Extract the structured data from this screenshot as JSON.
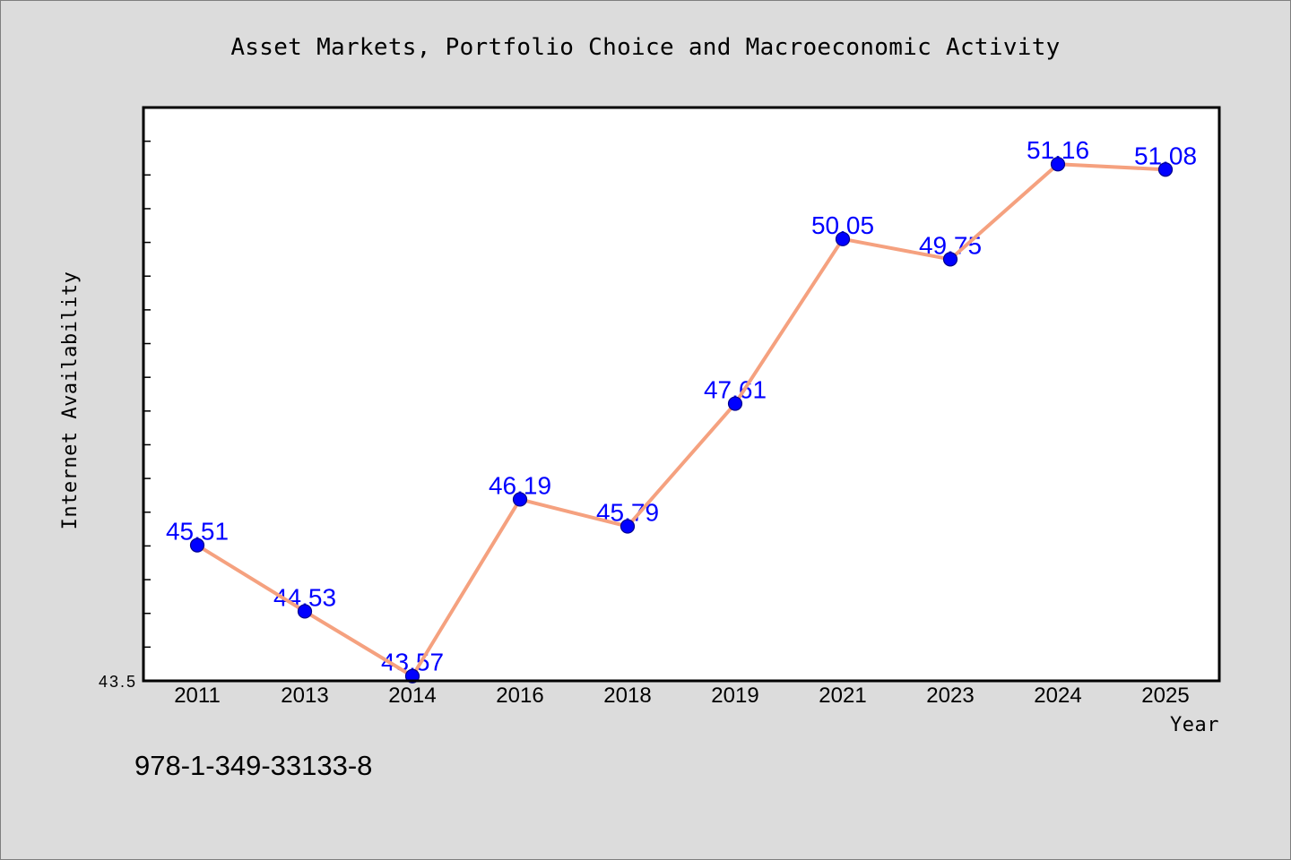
{
  "colors": {
    "background": "#dcdcdc",
    "frame": "#7f7f7f",
    "plot_background": "#ffffff",
    "axis": "#000000",
    "text": "#000000",
    "line": "#f5a17f",
    "marker_fill": "#0000ff",
    "marker_edge": "#00008b",
    "data_label": "#0000ff"
  },
  "footer_text": "978-1-349-33133-8",
  "chart_data": {
    "type": "line",
    "title": "Asset Markets, Portfolio Choice and Macroeconomic Activity",
    "xlabel": "Year",
    "ylabel": "Internet Availability",
    "categories": [
      "2011",
      "2013",
      "2014",
      "2016",
      "2018",
      "2019",
      "2021",
      "2023",
      "2024",
      "2025"
    ],
    "series": [
      {
        "values": [
          45.51,
          44.53,
          43.57,
          46.19,
          45.79,
          47.61,
          50.05,
          49.75,
          51.16,
          51.08
        ],
        "data_labels": true
      }
    ],
    "ylim": [
      43.5,
      52.0
    ],
    "y_ticks": [
      43.5
    ],
    "grid": false,
    "legend": "none"
  }
}
